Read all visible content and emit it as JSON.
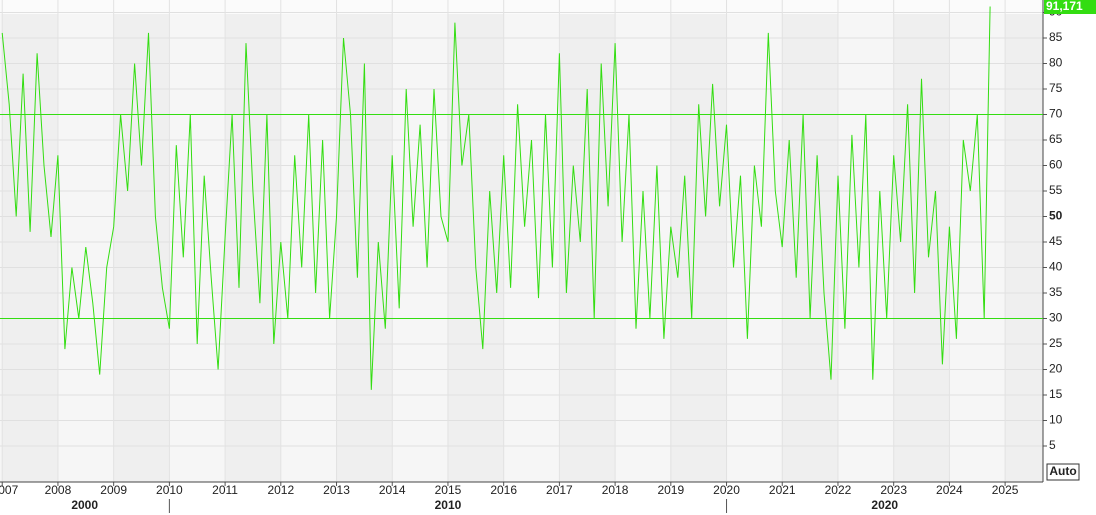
{
  "chart_data": {
    "type": "line",
    "color": "#33dd11",
    "ref_color": "#33dd11",
    "x": [
      2007,
      2007.125,
      2007.25,
      2007.375,
      2007.5,
      2007.625,
      2007.75,
      2007.875,
      2008,
      2008.125,
      2008.25,
      2008.375,
      2008.5,
      2008.625,
      2008.75,
      2008.875,
      2009,
      2009.125,
      2009.25,
      2009.375,
      2009.5,
      2009.625,
      2009.75,
      2009.875,
      2010,
      2010.125,
      2010.25,
      2010.375,
      2010.5,
      2010.625,
      2010.75,
      2010.875,
      2011,
      2011.125,
      2011.25,
      2011.375,
      2011.5,
      2011.625,
      2011.75,
      2011.875,
      2012,
      2012.125,
      2012.25,
      2012.375,
      2012.5,
      2012.625,
      2012.75,
      2012.875,
      2013,
      2013.125,
      2013.25,
      2013.375,
      2013.5,
      2013.625,
      2013.75,
      2013.875,
      2014,
      2014.125,
      2014.25,
      2014.375,
      2014.5,
      2014.625,
      2014.75,
      2014.875,
      2015,
      2015.125,
      2015.25,
      2015.375,
      2015.5,
      2015.625,
      2015.75,
      2015.875,
      2016,
      2016.125,
      2016.25,
      2016.375,
      2016.5,
      2016.625,
      2016.75,
      2016.875,
      2017,
      2017.125,
      2017.25,
      2017.375,
      2017.5,
      2017.625,
      2017.75,
      2017.875,
      2018,
      2018.125,
      2018.25,
      2018.375,
      2018.5,
      2018.625,
      2018.75,
      2018.875,
      2019,
      2019.125,
      2019.25,
      2019.375,
      2019.5,
      2019.625,
      2019.75,
      2019.875,
      2020,
      2020.125,
      2020.25,
      2020.375,
      2020.5,
      2020.625,
      2020.75,
      2020.875,
      2021,
      2021.125,
      2021.25,
      2021.375,
      2021.5,
      2021.625,
      2021.75,
      2021.875,
      2022,
      2022.125,
      2022.25,
      2022.375,
      2022.5,
      2022.625,
      2022.75,
      2022.875,
      2023,
      2023.125,
      2023.25,
      2023.375,
      2023.5,
      2023.625,
      2023.75,
      2023.875,
      2024,
      2024.125,
      2024.25,
      2024.375,
      2024.5,
      2024.625,
      2024.73
    ],
    "values": [
      86,
      72,
      50,
      78,
      47,
      82,
      60,
      46,
      62,
      24,
      40,
      30,
      44,
      33,
      19,
      40,
      48,
      70,
      55,
      80,
      60,
      86,
      50,
      36,
      28,
      64,
      42,
      70,
      25,
      58,
      38,
      20,
      46,
      70,
      36,
      84,
      55,
      33,
      70,
      25,
      45,
      30,
      62,
      40,
      70,
      35,
      65,
      30,
      50,
      85,
      70,
      38,
      80,
      16,
      45,
      28,
      62,
      32,
      75,
      48,
      68,
      40,
      75,
      50,
      45,
      88,
      60,
      70,
      40,
      24,
      55,
      35,
      62,
      36,
      72,
      48,
      65,
      34,
      70,
      40,
      82,
      35,
      60,
      45,
      75,
      30,
      80,
      52,
      84,
      45,
      70,
      28,
      55,
      30,
      60,
      26,
      48,
      38,
      58,
      30,
      72,
      50,
      76,
      52,
      68,
      40,
      58,
      26,
      60,
      48,
      86,
      55,
      44,
      65,
      38,
      70,
      30,
      62,
      35,
      18,
      58,
      28,
      66,
      40,
      70,
      18,
      55,
      30,
      62,
      45,
      72,
      35,
      77,
      42,
      55,
      21,
      48,
      26,
      65,
      55,
      70,
      30,
      91.171
    ],
    "last_label": "91,171",
    "xlim": [
      2006.96,
      2025.68
    ],
    "xticks": [
      {
        "value": 2007,
        "label": "007"
      },
      2008,
      2009,
      2010,
      2011,
      2012,
      2013,
      2014,
      2015,
      2016,
      2017,
      2018,
      2019,
      2020,
      2021,
      2022,
      2023,
      2024,
      2025
    ],
    "ylim": [
      -2.06,
      92.45
    ],
    "yticks": [
      5,
      10,
      15,
      20,
      25,
      30,
      35,
      40,
      45,
      50,
      55,
      60,
      65,
      70,
      75,
      80,
      85,
      90
    ],
    "bold_tick": 50,
    "hlines": [
      30,
      70
    ],
    "decades": [
      2000,
      2010,
      2020
    ],
    "button": "Auto"
  }
}
